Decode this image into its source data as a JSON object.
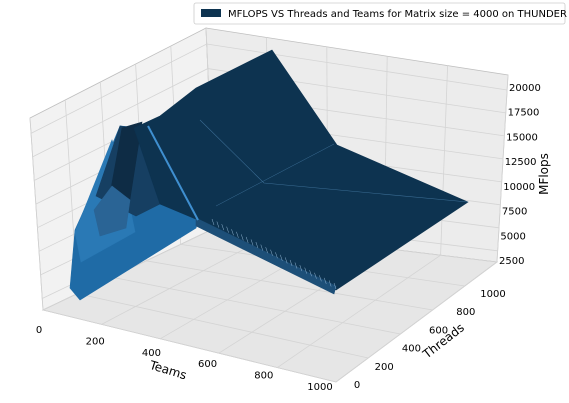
{
  "chart_data": {
    "type": "surface",
    "legend": {
      "label": "MFLOPS VS Threads and Teams for Matrix size = 4000 on THUNDER",
      "placement": "top-right",
      "color": "#0d3350"
    },
    "xlabel": "Teams",
    "ylabel": "Threads",
    "zlabel": "MFlops",
    "xlim": [
      0,
      1000
    ],
    "ylim": [
      0,
      1000
    ],
    "zlim": [
      2500,
      20000
    ],
    "x_ticks": [
      "0",
      "200",
      "400",
      "600",
      "800",
      "1000"
    ],
    "y_ticks": [
      "0",
      "200",
      "400",
      "600",
      "800",
      "1000"
    ],
    "z_ticks": [
      "2500",
      "5000",
      "7500",
      "10000",
      "12500",
      "15000",
      "17500",
      "20000"
    ],
    "grid": true,
    "colors": {
      "top_face": "#0d3350",
      "side_face": "#1f6ba6",
      "side_face_light": "#2a79b5",
      "pane": "#f2f2f2",
      "pane_dark": "#e6e6e6",
      "grid": "#d9d9d9"
    },
    "surface_points": [
      {
        "teams": 100,
        "threads": 0,
        "mflops": 3000
      },
      {
        "teams": 100,
        "threads": 1000,
        "mflops": 19000
      },
      {
        "teams": 300,
        "threads": 1000,
        "mflops": 20500
      },
      {
        "teams": 500,
        "threads": 1000,
        "mflops": 13500
      },
      {
        "teams": 1000,
        "threads": 1000,
        "mflops": 9000
      },
      {
        "teams": 1000,
        "threads": 100,
        "mflops": 5000
      }
    ]
  }
}
